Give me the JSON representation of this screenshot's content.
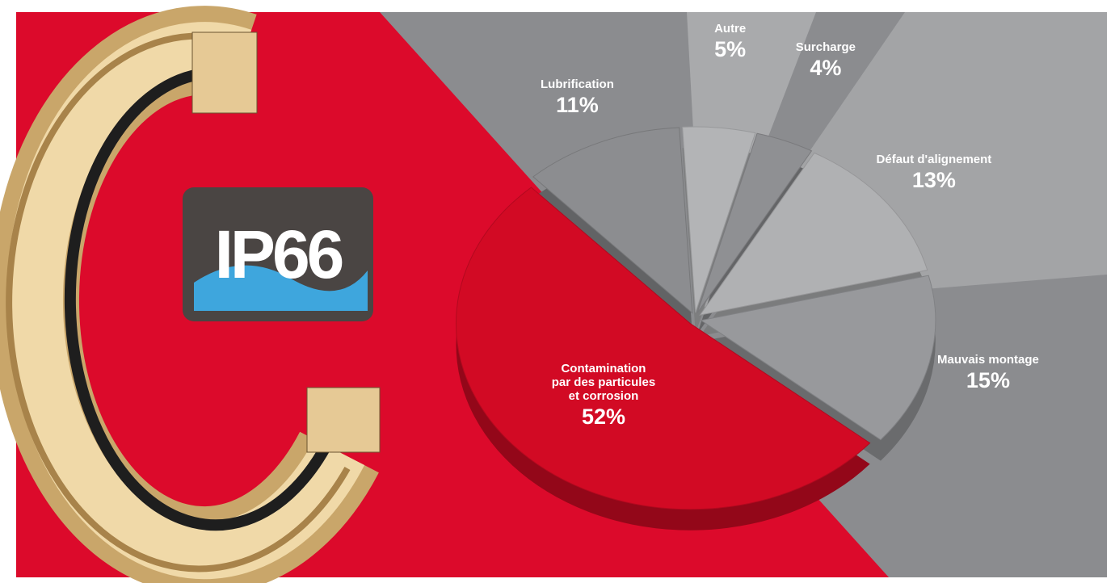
{
  "chart_data": {
    "type": "pie",
    "categories": [
      "Contamination\npar des particules\net corrosion",
      "Lubrification",
      "Autre",
      "Surcharge",
      "Défaut d'alignement",
      "Mauvais montage"
    ],
    "values": [
      52,
      11,
      5,
      4,
      13,
      15
    ],
    "value_labels": [
      "52%",
      "11%",
      "5%",
      "4%",
      "13%",
      "15%"
    ],
    "colors": [
      "#d20a24",
      "#8c8d90",
      "#b3b4b6",
      "#8f9093",
      "#b0b1b3",
      "#98999c"
    ]
  },
  "badge": {
    "text": "IP66"
  }
}
